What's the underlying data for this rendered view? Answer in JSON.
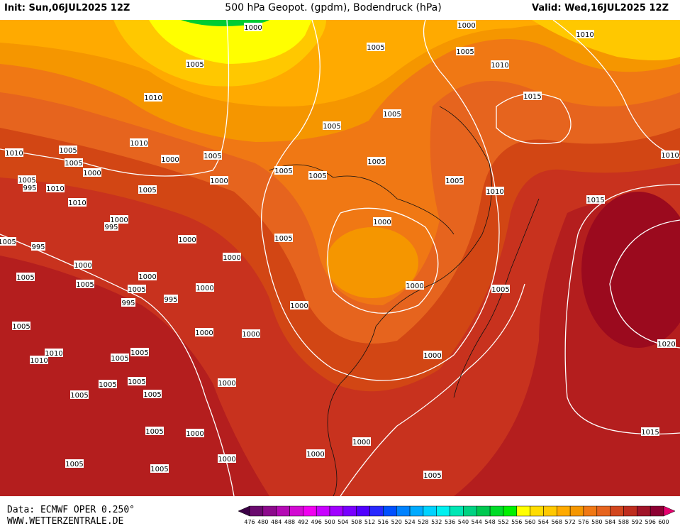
{
  "header": {
    "init": "Init: Sun,06JUL2025 12Z",
    "title": "500 hPa Geopot. (gpdm), Bodendruck (hPa)",
    "valid": "Valid: Wed,16JUL2025 12Z"
  },
  "footer": {
    "source": "Data: ECMWF OPER 0.250°",
    "site": "WWW.WETTERZENTRALE.DE"
  },
  "colorbar": {
    "labels": [
      "476",
      "480",
      "484",
      "488",
      "492",
      "496",
      "500",
      "504",
      "508",
      "512",
      "516",
      "520",
      "524",
      "528",
      "532",
      "536",
      "540",
      "544",
      "548",
      "552",
      "556",
      "560",
      "564",
      "568",
      "572",
      "576",
      "580",
      "584",
      "588",
      "592",
      "596",
      "600"
    ],
    "colors": [
      "#6a0a6e",
      "#8c0a8c",
      "#b40ab4",
      "#d20ad2",
      "#f000f0",
      "#c800ff",
      "#a000ff",
      "#7800ff",
      "#5000ff",
      "#2828ff",
      "#0050ff",
      "#0082ff",
      "#00aaff",
      "#00d2ff",
      "#00f0f0",
      "#00e6b4",
      "#00d282",
      "#00c850",
      "#00dc28",
      "#00f000",
      "#ffff00",
      "#ffdc00",
      "#ffc800",
      "#ffaa00",
      "#f59600",
      "#f07814",
      "#e6641e",
      "#d2461e",
      "#be2d1e",
      "#a01428",
      "#8c0032"
    ],
    "low_color": "#3c0046",
    "high_color": "#e6006e"
  },
  "map": {
    "isobar_labels": [
      "1000",
      "1000",
      "1005",
      "1005",
      "1010",
      "1005",
      "1010",
      "1010",
      "1015",
      "1005",
      "1005",
      "1010",
      "1005",
      "1010",
      "1005",
      "1000",
      "1005",
      "1010",
      "1005",
      "1000",
      "1005",
      "1005",
      "1005",
      "995",
      "1010",
      "1000",
      "1005",
      "1005",
      "1010",
      "1015",
      "1010",
      "1000",
      "995",
      "1000",
      "1005",
      "1000",
      "1005",
      "995",
      "1000",
      "1000",
      "1005",
      "1000",
      "1005",
      "1005",
      "1000",
      "1000",
      "1005",
      "995",
      "995",
      "1000",
      "1005",
      "1000",
      "1000",
      "1020",
      "1010",
      "1005",
      "1010",
      "1005",
      "1000",
      "1005",
      "1005",
      "1000",
      "1005",
      "1005",
      "1005",
      "1000",
      "1015",
      "1000",
      "1000",
      "1000",
      "1005",
      "1005",
      "1005"
    ]
  }
}
